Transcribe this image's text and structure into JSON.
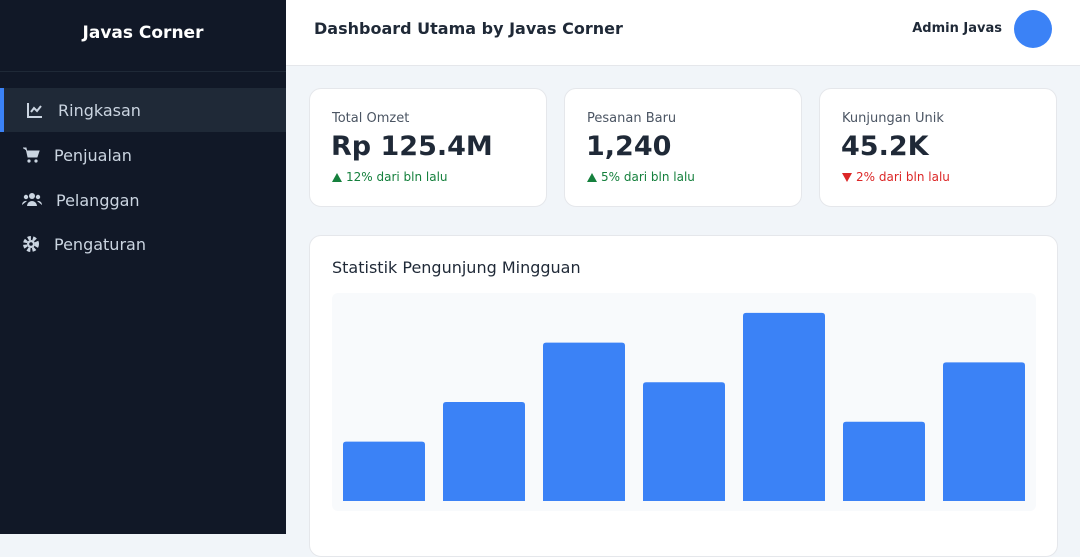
{
  "sidebar": {
    "brand": "Javas Corner",
    "menu": [
      "Ringkasan",
      "Penjualan",
      "Pelanggan",
      "Pengaturan"
    ]
  },
  "header": {
    "title": "Dashboard Utama by Javas Corner",
    "user": "Admin Javas"
  },
  "cards": [
    {
      "label": "Total Omzet",
      "value": "Rp 125.4M",
      "change": "12% dari bln lalu",
      "trend": "up"
    },
    {
      "label": "Pesanan Baru",
      "value": "1,240",
      "change": "5% dari bln lalu",
      "trend": "up"
    },
    {
      "label": "Kunjungan Unik",
      "value": "45.2K",
      "change": "2% dari bln lalu",
      "trend": "down"
    }
  ],
  "chart_data": {
    "type": "bar",
    "title": "Statistik Pengunjung Mingguan",
    "values": [
      30,
      50,
      80,
      60,
      95,
      40,
      70
    ],
    "color": "#3b82f6",
    "ylim": [
      0,
      100
    ]
  }
}
